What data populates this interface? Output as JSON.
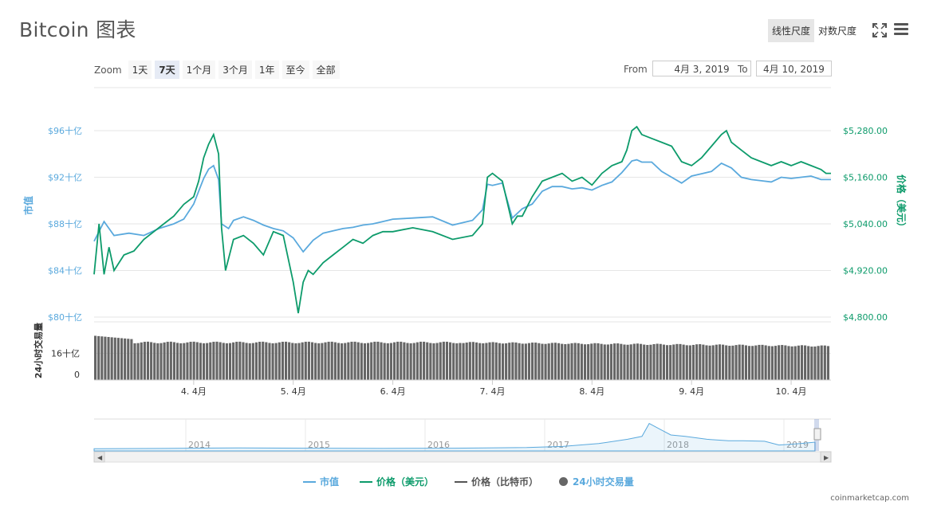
{
  "title": "Bitcoin 图表",
  "scale_toggle": {
    "linear": "线性尺度",
    "log": "对数尺度",
    "active": "linear"
  },
  "zoom": {
    "label": "Zoom",
    "buttons": [
      "1天",
      "7天",
      "1个月",
      "3个月",
      "1年",
      "至今",
      "全部"
    ],
    "active": "7天"
  },
  "range": {
    "from_label": "From",
    "from_value": "4月 3, 2019",
    "to_label": "To",
    "to_value": "4月 10, 2019"
  },
  "credit": "coinmarketcap.com",
  "colors": {
    "market_cap": "#5aa9dd",
    "price_usd": "#0d9b6b",
    "price_btc": "#555555",
    "volume": "#666666",
    "axis_left": "#5aa9dd",
    "axis_right": "#0d9b6b",
    "grid": "#e6e6e6"
  },
  "legend": [
    {
      "label": "市值",
      "color": "#5aa9dd",
      "kind": "line"
    },
    {
      "label": "价格（美元）",
      "color": "#0d9b6b",
      "kind": "line"
    },
    {
      "label": "价格（比特币）",
      "color": "#555555",
      "kind": "line"
    },
    {
      "label": "24小时交易量",
      "color": "#666666",
      "kind": "dot"
    }
  ],
  "icons": {
    "fullscreen": "fullscreen-icon",
    "menu": "hamburger-menu-icon"
  },
  "chart_data": {
    "type": "line",
    "title": "Bitcoin 图表",
    "left_axis": {
      "label": "市值",
      "ticks": [
        "$80十亿",
        "$84十亿",
        "$88十亿",
        "$92十亿",
        "$96十亿"
      ],
      "range": [
        80,
        96
      ],
      "unit": "十亿 USD"
    },
    "right_axis": {
      "label": "价格（美元）",
      "ticks": [
        "$4,800.00",
        "$4,920.00",
        "$5,040.00",
        "$5,160.00",
        "$5,280.00"
      ],
      "range": [
        4800,
        5280
      ]
    },
    "volume_axis": {
      "label": "24小时交易量",
      "ticks": [
        "0",
        "16十亿"
      ],
      "range": [
        0,
        32
      ]
    },
    "x_ticks": [
      "4. 4月",
      "5. 4月",
      "6. 4月",
      "7. 4月",
      "8. 4月",
      "9. 4月",
      "10. 4月"
    ],
    "x_range_days": [
      3.0,
      10.4
    ],
    "series": [
      {
        "name": "市值",
        "axis": "left",
        "x": [
          3.0,
          3.1,
          3.2,
          3.35,
          3.5,
          3.65,
          3.8,
          3.9,
          4.0,
          4.05,
          4.1,
          4.15,
          4.2,
          4.25,
          4.28,
          4.35,
          4.4,
          4.5,
          4.6,
          4.7,
          4.8,
          4.9,
          5.0,
          5.1,
          5.2,
          5.3,
          5.4,
          5.5,
          5.6,
          5.7,
          5.8,
          5.9,
          6.0,
          6.2,
          6.4,
          6.6,
          6.8,
          6.9,
          6.95,
          7.0,
          7.1,
          7.2,
          7.3,
          7.4,
          7.5,
          7.6,
          7.7,
          7.8,
          7.9,
          8.0,
          8.1,
          8.2,
          8.3,
          8.4,
          8.45,
          8.5,
          8.6,
          8.7,
          8.8,
          8.9,
          9.0,
          9.1,
          9.2,
          9.3,
          9.4,
          9.5,
          9.6,
          9.7,
          9.8,
          9.9,
          10.0,
          10.1,
          10.2,
          10.3,
          10.4
        ],
        "values": [
          86.5,
          88.2,
          87.0,
          87.2,
          87.0,
          87.6,
          88.0,
          88.4,
          89.7,
          90.8,
          91.9,
          92.7,
          93.0,
          91.8,
          88.0,
          87.6,
          88.3,
          88.6,
          88.3,
          87.9,
          87.6,
          87.4,
          86.8,
          85.6,
          86.6,
          87.2,
          87.4,
          87.6,
          87.7,
          87.9,
          88.0,
          88.2,
          88.4,
          88.5,
          88.6,
          87.9,
          88.3,
          89.2,
          91.4,
          91.3,
          91.5,
          88.5,
          89.3,
          89.7,
          90.8,
          91.2,
          91.2,
          91.0,
          91.1,
          90.9,
          91.3,
          91.6,
          92.4,
          93.4,
          93.5,
          93.3,
          93.3,
          92.5,
          92.0,
          91.5,
          92.1,
          92.3,
          92.5,
          93.2,
          92.8,
          92.0,
          91.8,
          91.7,
          91.6,
          92.0,
          91.9,
          92.0,
          92.1,
          91.8,
          91.8
        ]
      },
      {
        "name": "价格（美元）",
        "axis": "right",
        "x": [
          3.0,
          3.05,
          3.1,
          3.15,
          3.2,
          3.3,
          3.4,
          3.5,
          3.6,
          3.7,
          3.8,
          3.9,
          4.0,
          4.05,
          4.1,
          4.15,
          4.2,
          4.25,
          4.28,
          4.32,
          4.4,
          4.5,
          4.6,
          4.7,
          4.8,
          4.9,
          5.0,
          5.05,
          5.1,
          5.15,
          5.2,
          5.3,
          5.4,
          5.5,
          5.6,
          5.7,
          5.8,
          5.9,
          6.0,
          6.2,
          6.4,
          6.6,
          6.8,
          6.9,
          6.95,
          7.0,
          7.1,
          7.2,
          7.25,
          7.3,
          7.4,
          7.5,
          7.6,
          7.7,
          7.8,
          7.9,
          8.0,
          8.1,
          8.2,
          8.3,
          8.35,
          8.4,
          8.45,
          8.5,
          8.6,
          8.7,
          8.8,
          8.9,
          9.0,
          9.1,
          9.2,
          9.3,
          9.35,
          9.4,
          9.5,
          9.6,
          9.7,
          9.8,
          9.9,
          10.0,
          10.1,
          10.2,
          10.3,
          10.35,
          10.4
        ],
        "values": [
          4910,
          5040,
          4910,
          4980,
          4920,
          4960,
          4970,
          5000,
          5020,
          5040,
          5060,
          5090,
          5110,
          5150,
          5210,
          5245,
          5270,
          5220,
          5030,
          4920,
          5000,
          5010,
          4990,
          4960,
          5020,
          5010,
          4890,
          4810,
          4890,
          4920,
          4910,
          4940,
          4960,
          4980,
          5000,
          4990,
          5010,
          5020,
          5020,
          5030,
          5020,
          5000,
          5010,
          5040,
          5160,
          5170,
          5150,
          5040,
          5060,
          5060,
          5110,
          5150,
          5160,
          5170,
          5150,
          5160,
          5140,
          5170,
          5190,
          5200,
          5230,
          5280,
          5290,
          5270,
          5260,
          5250,
          5240,
          5200,
          5190,
          5210,
          5240,
          5270,
          5280,
          5250,
          5230,
          5210,
          5200,
          5190,
          5200,
          5190,
          5200,
          5190,
          5180,
          5170,
          5170
        ]
      },
      {
        "name": "24小时交易量",
        "axis": "volume",
        "kind": "bar",
        "x_start": 3.0,
        "x_step": 0.033,
        "values_start": 26.5,
        "values_mid": 22.5,
        "values_end": 17.0
      }
    ],
    "navigator": {
      "x_ticks": [
        "2014",
        "2015",
        "2016",
        "2017",
        "2018",
        "2019"
      ],
      "series_name": "市值"
    },
    "grid": true
  }
}
